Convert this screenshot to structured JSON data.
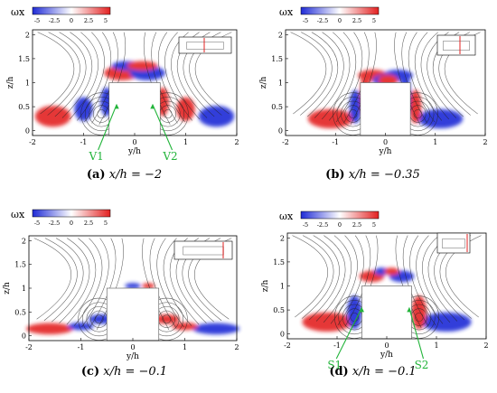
{
  "colorbar": {
    "label": "ωx",
    "ticks": [
      "-5",
      "-2.5",
      "0",
      "2.5",
      "5"
    ],
    "colors": {
      "neg": "#1f2bd6",
      "mid": "#ffffff",
      "pos": "#e32121"
    }
  },
  "axes": {
    "xlabel": "y/h",
    "ylabel": "z/h",
    "xticks": [
      "-2",
      "-1",
      "0",
      "1",
      "2"
    ],
    "yticks": [
      "0",
      "0.5",
      "1",
      "1.5",
      "2"
    ]
  },
  "panels": [
    {
      "id": "a",
      "letter": "(a)",
      "math": "x/h = −2",
      "annotations": [
        "V1",
        "V2"
      ]
    },
    {
      "id": "b",
      "letter": "(b)",
      "math": "x/h = −0.35",
      "annotations": []
    },
    {
      "id": "c",
      "letter": "(c)",
      "math": "x/h = −0.1",
      "annotations": []
    },
    {
      "id": "d",
      "letter": "(d)",
      "math": "x/h = −0.1",
      "annotations": [
        "S1",
        "S2"
      ]
    }
  ],
  "accent": {
    "annotation": "#22b43a",
    "inset_line": "#e32121"
  }
}
